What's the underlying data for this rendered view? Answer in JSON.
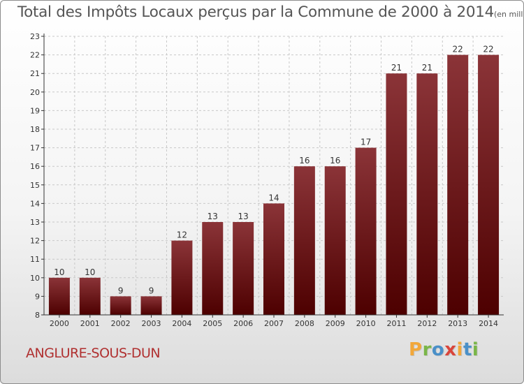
{
  "header": {
    "title": "Total des Impôts Locaux perçus par la Commune de 2000 à 2014",
    "unit": "(en milliers d'€)"
  },
  "footer": {
    "commune": "ANGLURE-SOUS-DUN",
    "brand_letters": [
      "P",
      "r",
      "o",
      "x",
      "i",
      "t",
      "i"
    ],
    "brand_colors": [
      "#f2a73a",
      "#7ab648",
      "#4a90c8",
      "#d9453b",
      "#f2a73a",
      "#4a90c8",
      "#7ab648"
    ]
  },
  "colors": {
    "bar_top": "#8b3438",
    "bar_bottom": "#4d0000",
    "grid": "#c8c8c8",
    "axis": "#333333",
    "label": "#333333"
  },
  "chart_data": {
    "type": "bar",
    "title": "Total des Impôts Locaux perçus par la Commune de 2000 à 2014",
    "xlabel": "",
    "ylabel": "(en milliers d'€)",
    "categories": [
      "2000",
      "2001",
      "2002",
      "2003",
      "2004",
      "2005",
      "2006",
      "2007",
      "2008",
      "2009",
      "2010",
      "2011",
      "2012",
      "2013",
      "2014"
    ],
    "values": [
      10,
      10,
      9,
      9,
      12,
      13,
      13,
      14,
      16,
      16,
      17,
      21,
      21,
      22,
      22
    ],
    "ylim": [
      8,
      23
    ],
    "yticks": [
      8,
      9,
      10,
      11,
      12,
      13,
      14,
      15,
      16,
      17,
      18,
      19,
      20,
      21,
      22,
      23
    ],
    "grid": true,
    "data_labels": true
  }
}
